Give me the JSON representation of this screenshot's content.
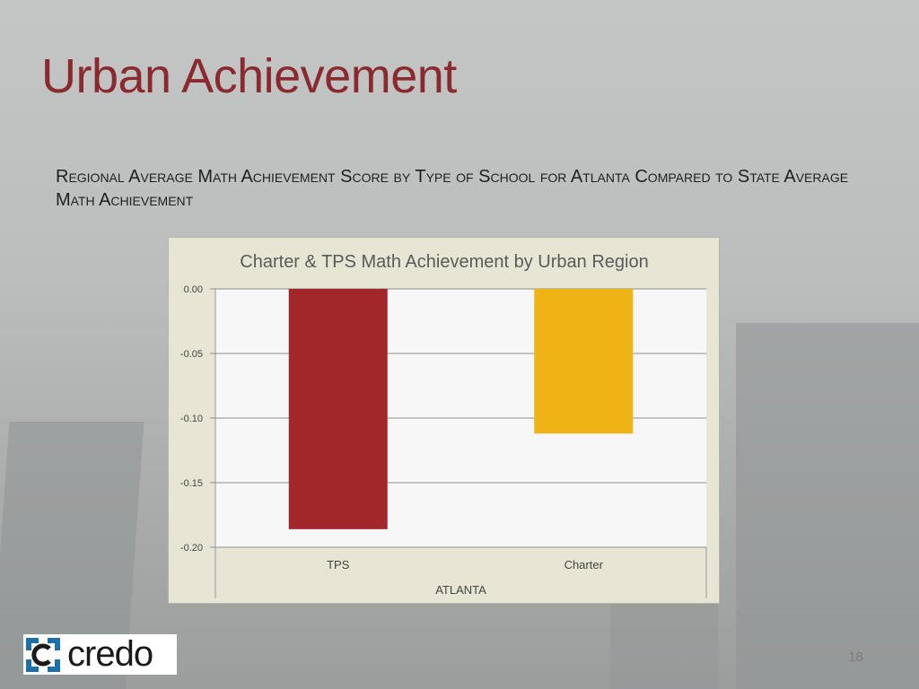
{
  "slide": {
    "title": "Urban Achievement",
    "subtitle": "Regional Average Math Achievement Score by Type of School for Atlanta Compared to State Average Math Achievement",
    "page_number": "18",
    "logo_text": "credo"
  },
  "colors": {
    "title": "#8a2a2e",
    "tps": "#a2272b",
    "charter": "#eeb416",
    "chart_bg": "#e7e6d5",
    "plot_bg": "#f7f7f7",
    "logo_accent": "#1d6fa8"
  },
  "chart_data": {
    "type": "bar",
    "title": "Charter & TPS Math Achievement by Urban Region",
    "categories": [
      "TPS",
      "Charter"
    ],
    "group_label": "ATLANTA",
    "values": [
      -0.186,
      -0.112
    ],
    "ylim": [
      -0.2,
      0.0
    ],
    "yticks": [
      "0.00",
      "-0.05",
      "-0.10",
      "-0.15",
      "-0.20"
    ],
    "ytick_values": [
      0.0,
      -0.05,
      -0.1,
      -0.15,
      -0.2
    ],
    "grid": true,
    "legend": "none"
  }
}
